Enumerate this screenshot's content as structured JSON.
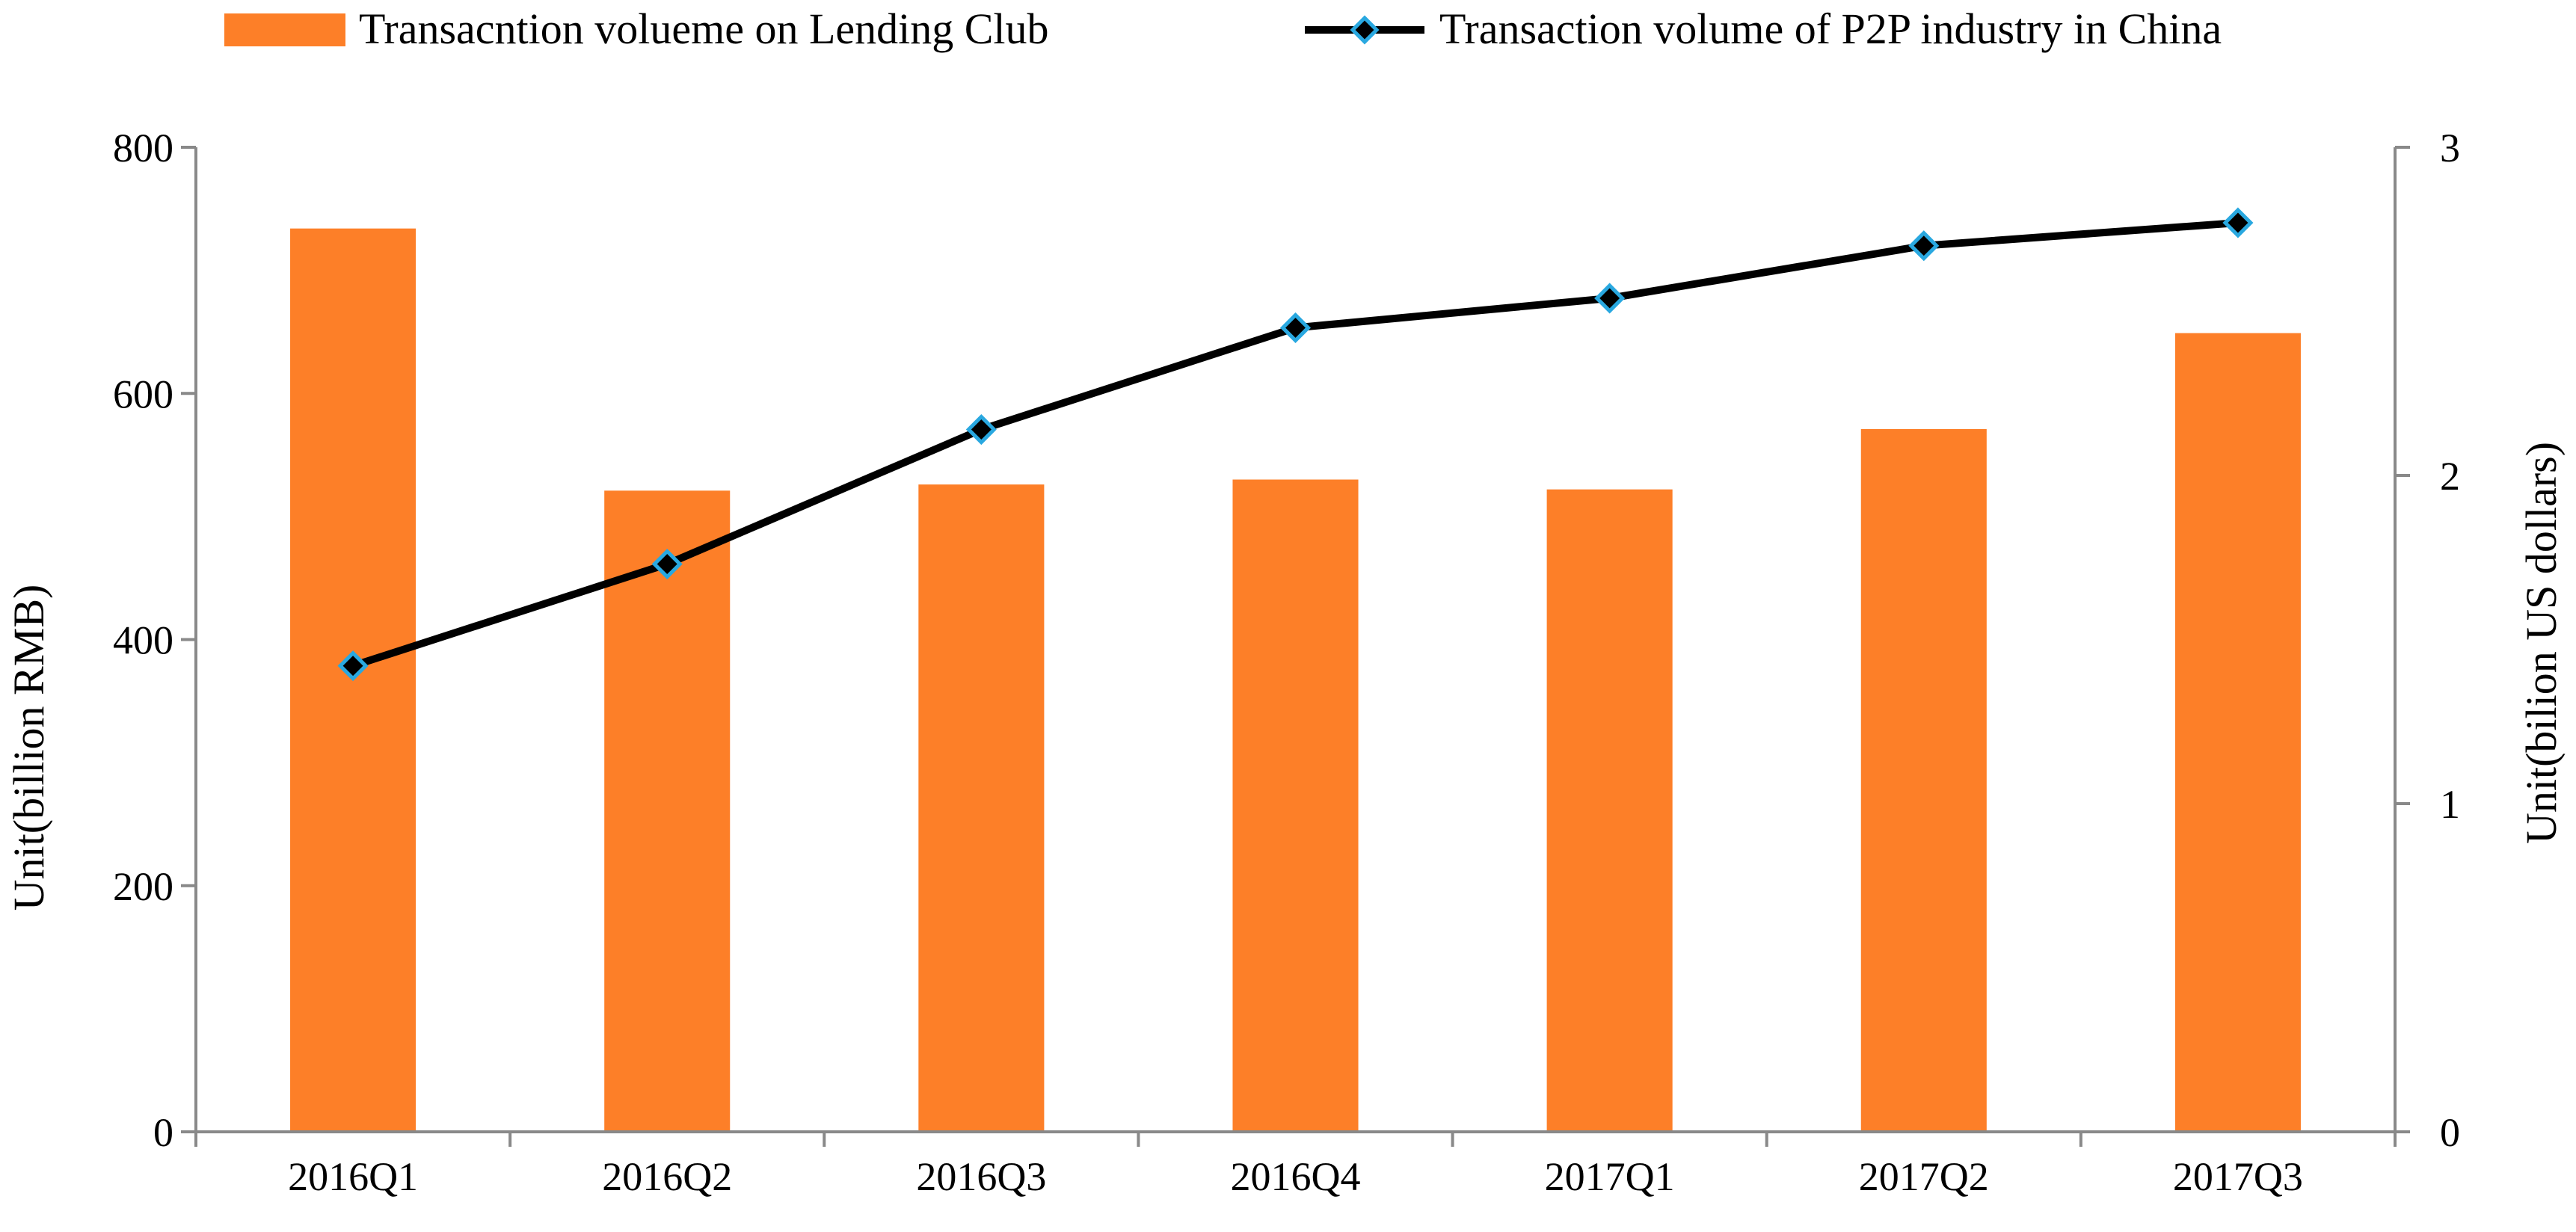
{
  "chart_data": {
    "type": "bar",
    "title": "",
    "categories": [
      "2016Q1",
      "2016Q2",
      "2016Q3",
      "2016Q4",
      "2017Q1",
      "2017Q2",
      "2017Q3"
    ],
    "series": [
      {
        "name": "Transacntion volueme on Lending Club",
        "type": "bar",
        "axis": "left",
        "color": "#fd7f28",
        "values": [
          734,
          521,
          526,
          530,
          522,
          571,
          649
        ]
      },
      {
        "name": "Transaction volume of P2P industry in China",
        "type": "line",
        "axis": "right",
        "color": "#000000",
        "marker_color": "#29a8e0",
        "values": [
          1.42,
          1.73,
          2.14,
          2.45,
          2.54,
          2.7,
          2.77
        ]
      }
    ],
    "ylabel": "Unit(billion RMB)",
    "ylabel_right": "Unit(bilion US dollars)",
    "ylim": [
      0,
      800
    ],
    "ylim_right": [
      0,
      3
    ],
    "yticks": [
      "0",
      "200",
      "400",
      "600",
      "800"
    ],
    "yticks_right": [
      "0",
      "1",
      "2",
      "3"
    ],
    "legend_position": "top",
    "grid": false
  }
}
